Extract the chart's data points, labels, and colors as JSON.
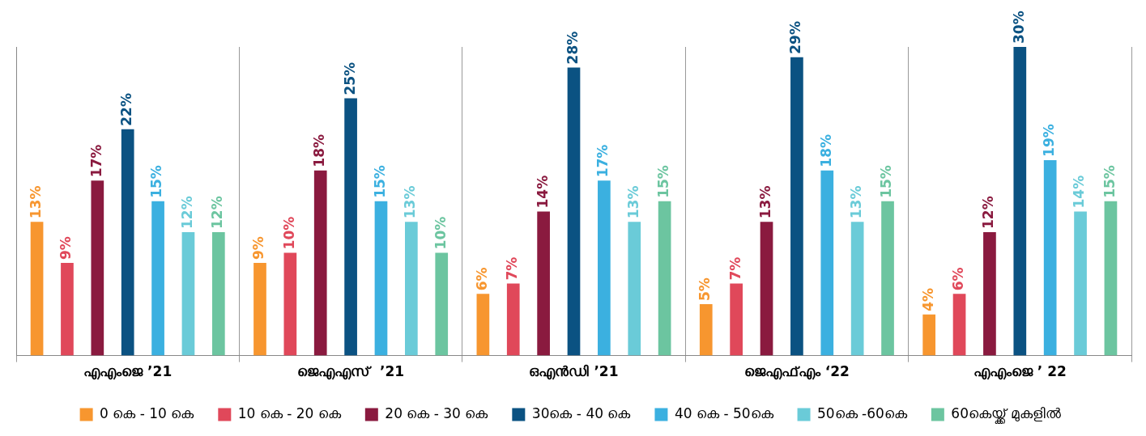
{
  "chart_data": {
    "type": "bar",
    "categories": [
      "എഎംജെ ’21",
      "ജെഎഎസ്  ’21",
      "ഒഎൻഡി ’21",
      "ജെഎഫ്എം ‘22",
      "എഎംജെ ’ 22"
    ],
    "series": [
      {
        "name": "0 കെ - 10 കെ",
        "color": "#f7962f",
        "values": [
          13,
          9,
          6,
          5,
          4
        ],
        "value_labels": [
          "13%",
          "9%",
          "6%",
          "5%",
          "4%"
        ]
      },
      {
        "name": "10 കെ - 20 കെ",
        "color": "#e0485a",
        "values": [
          9,
          10,
          7,
          7,
          6
        ],
        "value_labels": [
          "9%",
          "10%",
          "7%",
          "7%",
          "6%"
        ]
      },
      {
        "name": "20 കെ - 30 കെ",
        "color": "#8a1a3f",
        "values": [
          17,
          18,
          14,
          13,
          12
        ],
        "value_labels": [
          "17%",
          "18%",
          "14%",
          "13%",
          "12%"
        ]
      },
      {
        "name": "30കെ - 40 കെ",
        "color": "#0b5282",
        "values": [
          22,
          25,
          28,
          29,
          30
        ],
        "value_labels": [
          "22%",
          "25%",
          "28%",
          "29%",
          "30%"
        ]
      },
      {
        "name": "40 കെ - 50കെ",
        "color": "#3bb0e0",
        "values": [
          15,
          15,
          17,
          18,
          19
        ],
        "value_labels": [
          "15%",
          "15%",
          "17%",
          "18%",
          "19%"
        ]
      },
      {
        "name": "50കെ -60കെ",
        "color": "#6acbd8",
        "values": [
          12,
          13,
          13,
          13,
          14
        ],
        "value_labels": [
          "12%",
          "13%",
          "13%",
          "13%",
          "14%"
        ]
      },
      {
        "name": "60കെയ്ക്ക് മുകളിൽ",
        "color": "#6cc5a0",
        "values": [
          12,
          10,
          15,
          15,
          15
        ],
        "value_labels": [
          "12%",
          "10%",
          "15%",
          "15%",
          "15%"
        ]
      }
    ],
    "grid": "x",
    "legend": "bottom"
  }
}
